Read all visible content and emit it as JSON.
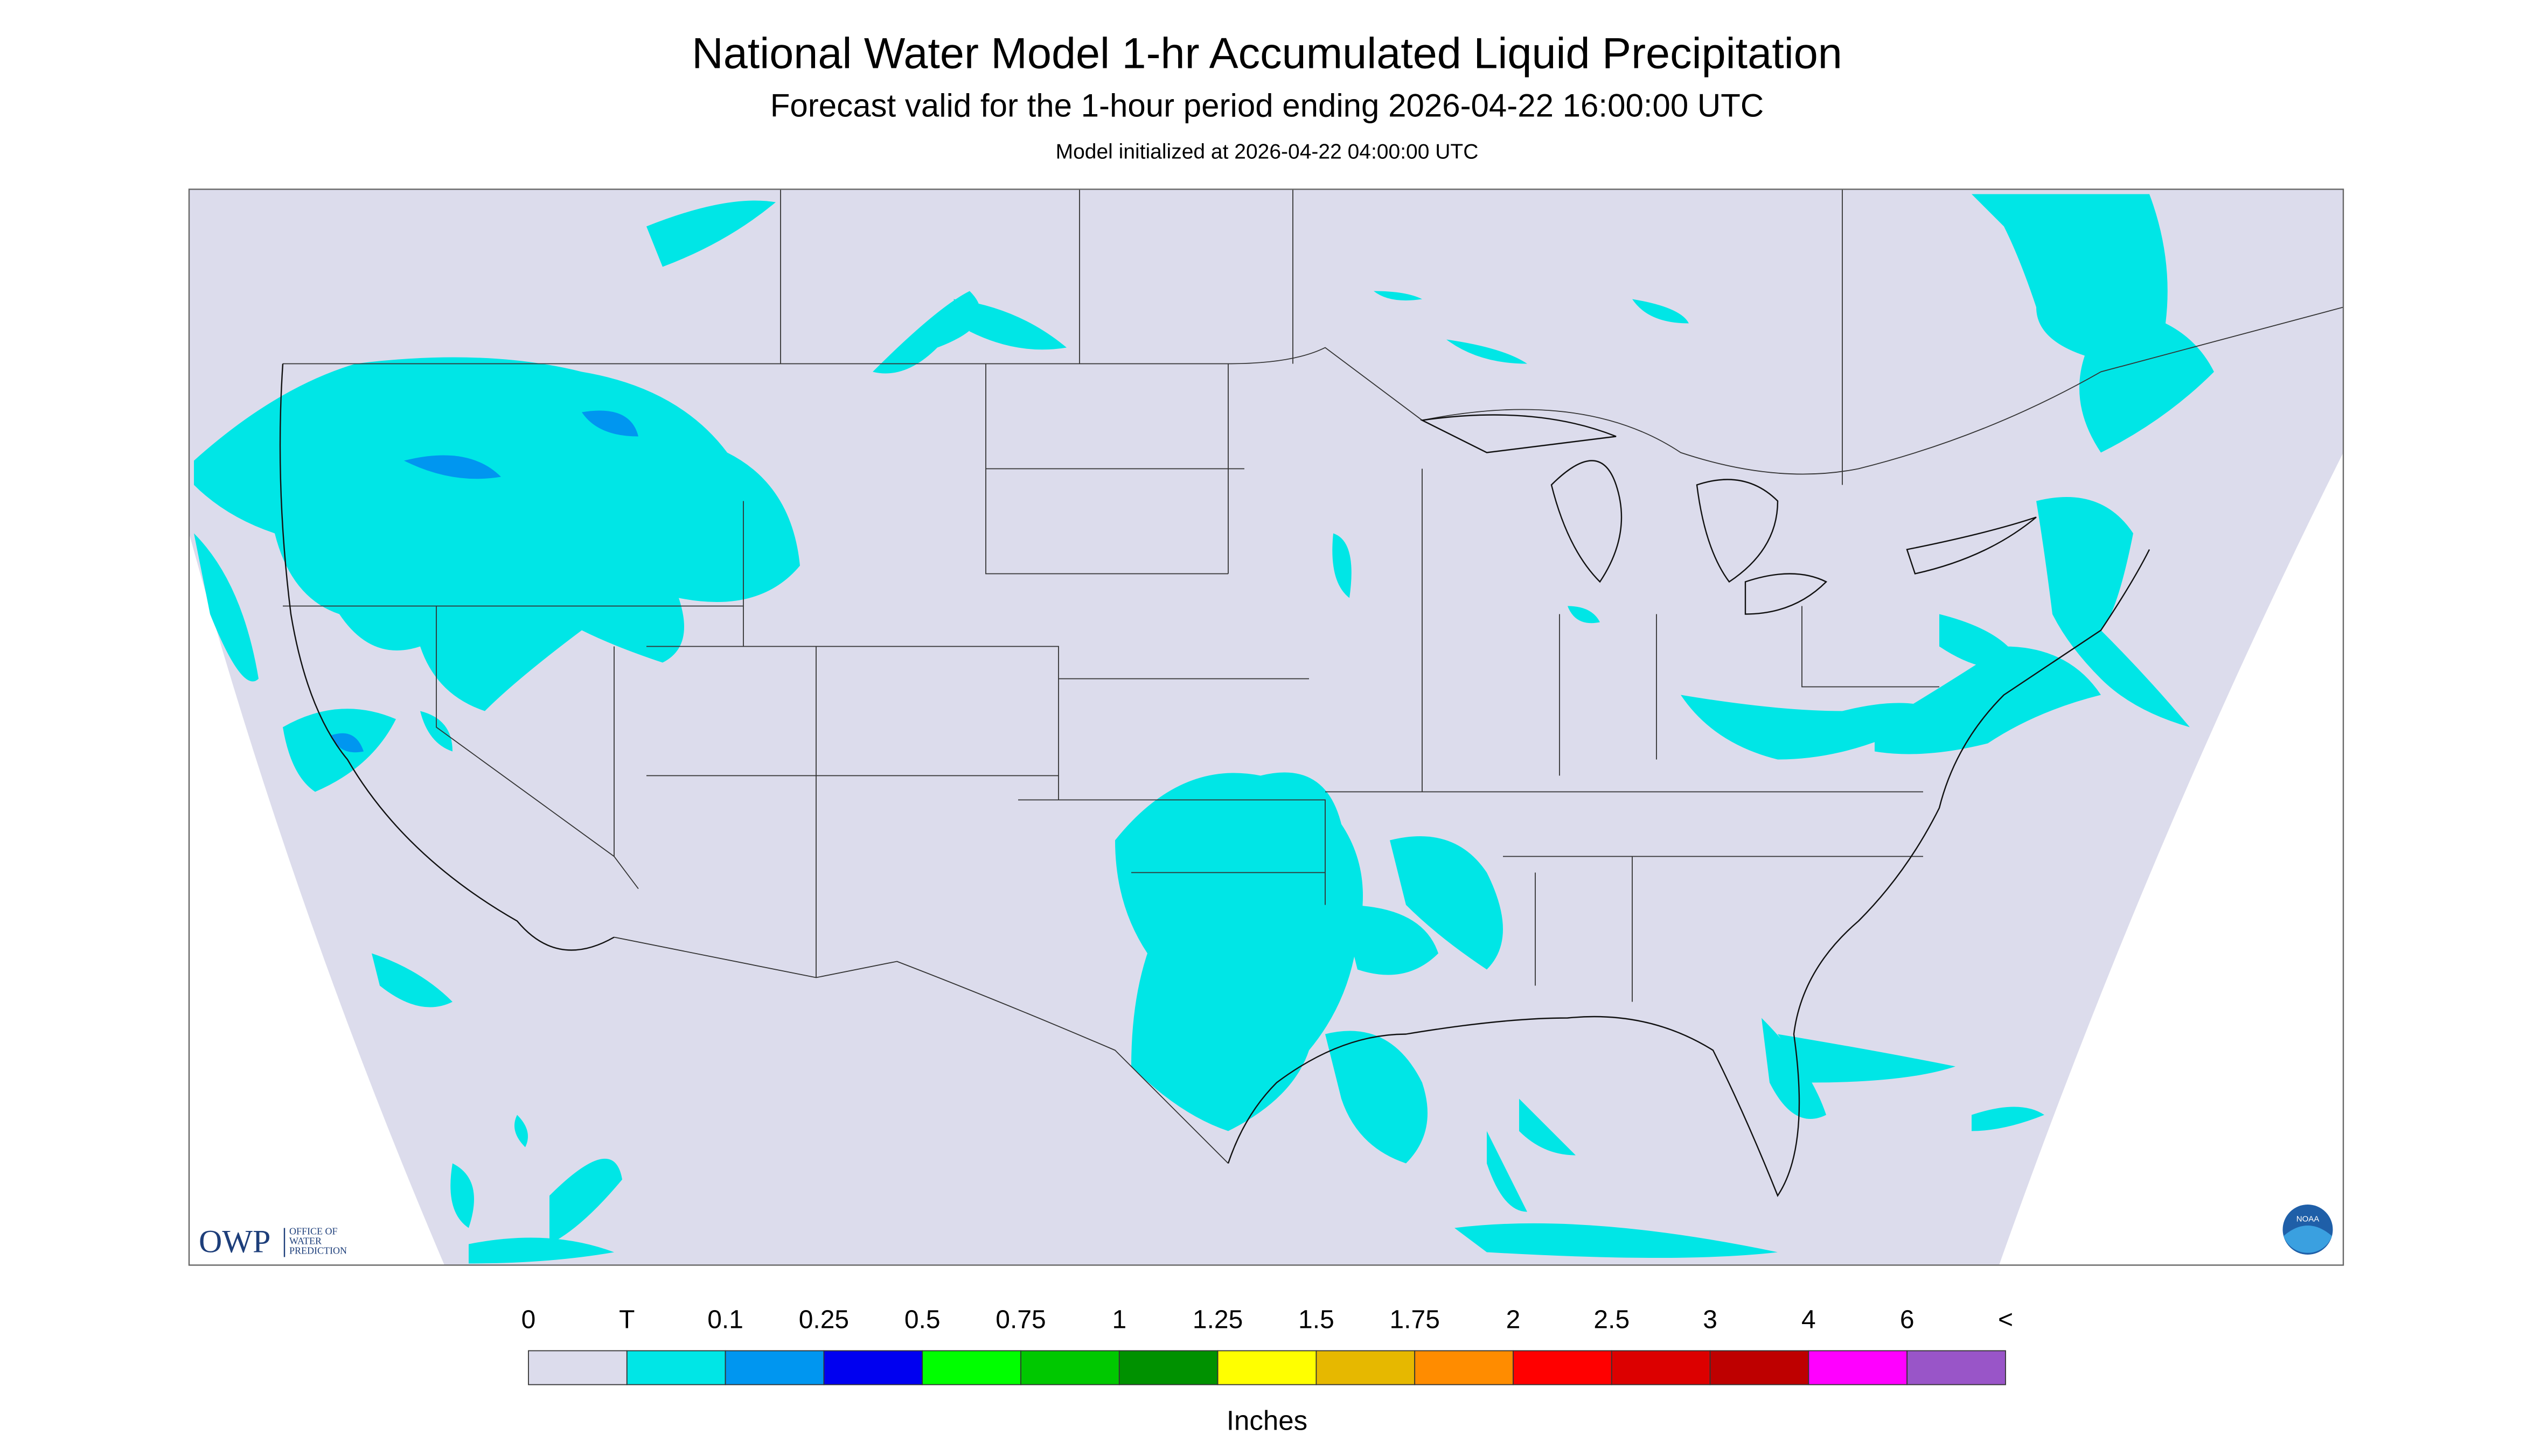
{
  "header": {
    "title": "National Water Model 1-hr Accumulated Liquid Precipitation",
    "subtitle": "Forecast valid for the 1-hour period ending 2026-04-22 16:00:00 UTC",
    "initialized": "Model initialized at 2026-04-22 04:00:00 UTC"
  },
  "logos": {
    "owp": "OWP",
    "owp_line1": "OFFICE OF",
    "owp_line2": "WATER",
    "owp_line3": "PREDICTION",
    "noaa": "NOAA"
  },
  "legend": {
    "labels": [
      "0",
      "T",
      "0.1",
      "0.25",
      "0.5",
      "0.75",
      "1",
      "1.25",
      "1.5",
      "1.75",
      "2",
      "2.5",
      "3",
      "4",
      "6",
      "<"
    ],
    "colors": [
      "#dcdcec",
      "#00e6e6",
      "#0096f0",
      "#0000f0",
      "#00ff00",
      "#00c800",
      "#009100",
      "#ffff00",
      "#e6b800",
      "#ff8c00",
      "#ff0000",
      "#dc0000",
      "#be0000",
      "#ff00ff",
      "#9955c8"
    ],
    "unit": "Inches"
  }
}
